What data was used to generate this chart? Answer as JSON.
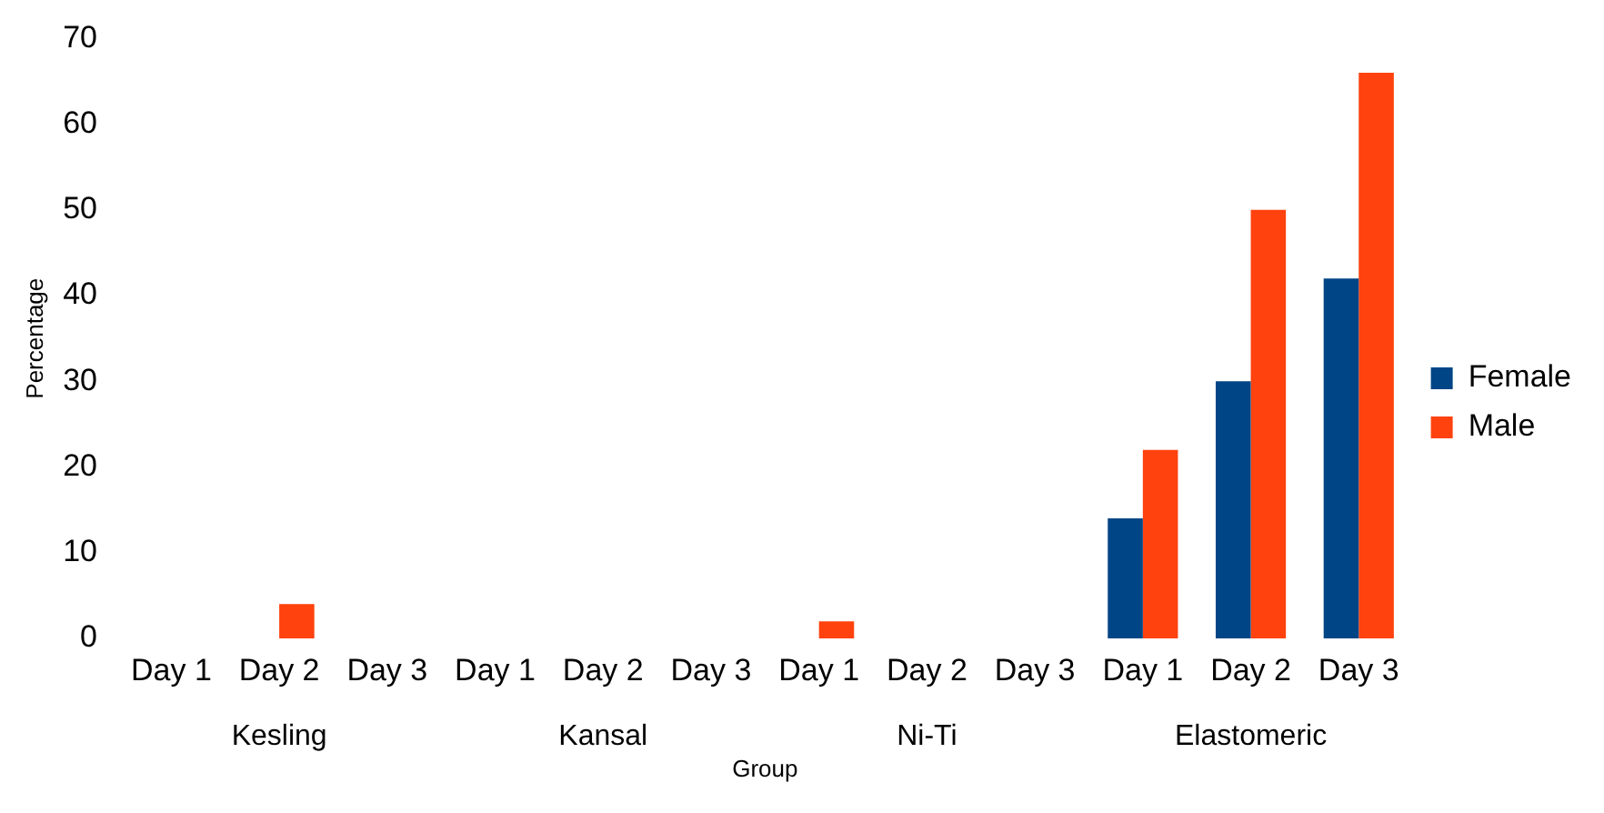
{
  "chart_data": {
    "type": "bar",
    "xlabel": "Group",
    "ylabel": "Percentage",
    "categories": [
      "Day 1",
      "Day 2",
      "Day 3",
      "Day 1",
      "Day 2",
      "Day 3",
      "Day 1",
      "Day 2",
      "Day 3",
      "Day 1",
      "Day 2",
      "Day 3"
    ],
    "series": [
      {
        "name": "Female",
        "color": "#004586",
        "values": [
          0,
          0,
          0,
          0,
          0,
          0,
          0,
          0,
          0,
          14,
          30,
          42
        ]
      },
      {
        "name": "Male",
        "color": "#ff420e",
        "values": [
          0,
          4,
          0,
          0,
          0,
          0,
          2,
          0,
          0,
          22,
          50,
          66
        ]
      }
    ],
    "annotations": [
      "Kesling",
      "Kansal",
      "Ni-Ti",
      "Elastomeric"
    ],
    "ylim": [
      0,
      70
    ],
    "yticks": [
      0,
      10,
      20,
      30,
      40,
      50,
      60,
      70
    ],
    "grid": false,
    "legend": "right"
  }
}
